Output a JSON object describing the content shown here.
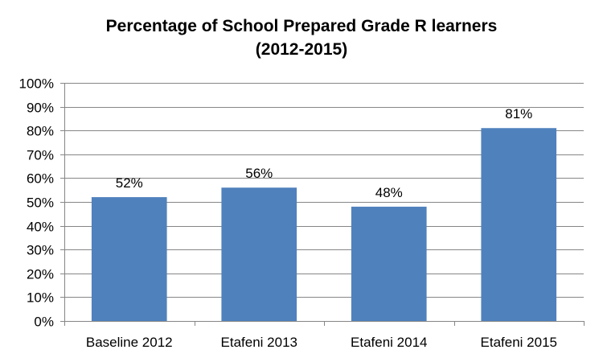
{
  "chart_data": {
    "type": "bar",
    "title": "Percentage of School Prepared Grade R learners",
    "subtitle": "(2012-2015)",
    "categories": [
      "Baseline 2012",
      "Etafeni 2013",
      "Etafeni 2014",
      "Etafeni 2015"
    ],
    "values": [
      52,
      56,
      48,
      81
    ],
    "data_labels": [
      "52%",
      "56%",
      "48%",
      "81%"
    ],
    "ylim": [
      0,
      100
    ],
    "ytick_labels": [
      "0%",
      "10%",
      "20%",
      "30%",
      "40%",
      "50%",
      "60%",
      "70%",
      "80%",
      "90%",
      "100%"
    ],
    "xlabel": "",
    "ylabel": "",
    "grid": true,
    "legend": "none",
    "bar_color": "#4F81BD",
    "grid_color": "#868686"
  }
}
